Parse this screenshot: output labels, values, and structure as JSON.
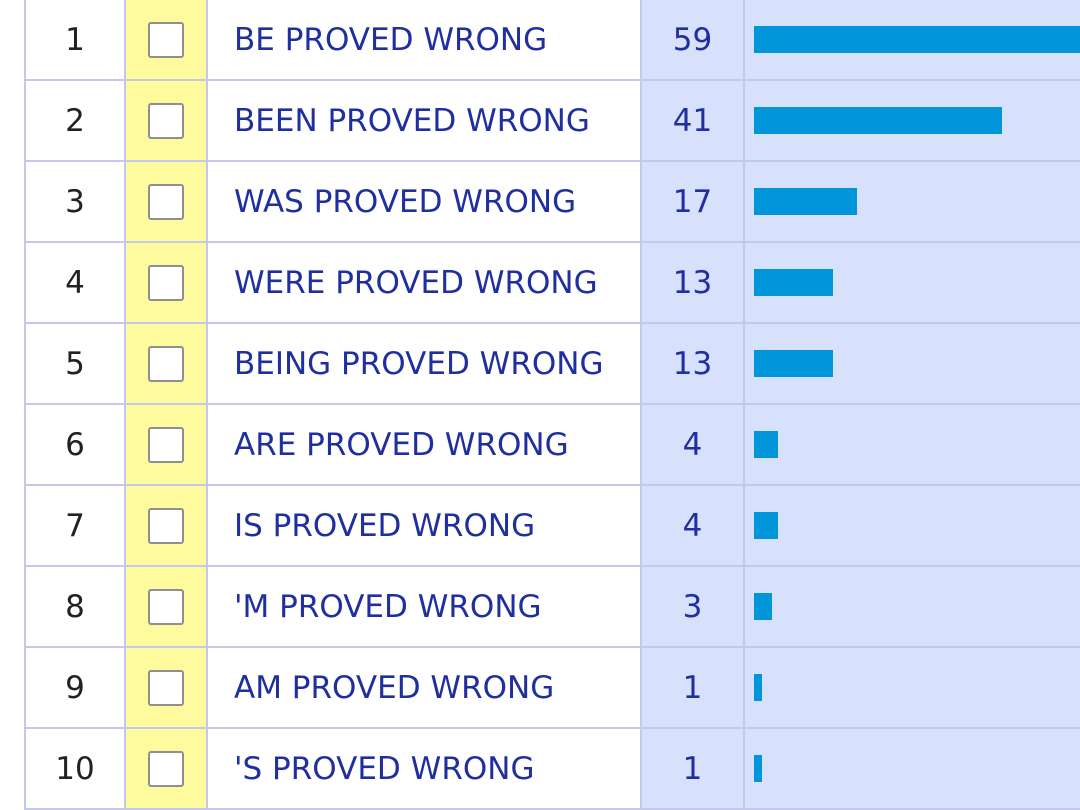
{
  "rows": [
    {
      "rank": "1",
      "phrase": "BE PROVED WRONG",
      "frequency": "59"
    },
    {
      "rank": "2",
      "phrase": "BEEN PROVED WRONG",
      "frequency": "41"
    },
    {
      "rank": "3",
      "phrase": "WAS PROVED WRONG",
      "frequency": "17"
    },
    {
      "rank": "4",
      "phrase": "WERE PROVED WRONG",
      "frequency": "13"
    },
    {
      "rank": "5",
      "phrase": "BEING PROVED WRONG",
      "frequency": "13"
    },
    {
      "rank": "6",
      "phrase": "ARE PROVED WRONG",
      "frequency": "4"
    },
    {
      "rank": "7",
      "phrase": "IS PROVED WRONG",
      "frequency": "4"
    },
    {
      "rank": "8",
      "phrase": "'M PROVED WRONG",
      "frequency": "3"
    },
    {
      "rank": "9",
      "phrase": "AM PROVED WRONG",
      "frequency": "1"
    },
    {
      "rank": "10",
      "phrase": "'S PROVED WRONG",
      "frequency": "1"
    }
  ],
  "bar_max_frequency": 59,
  "colors": {
    "bar": "#0096d9",
    "checkbox_column": "#fdfb9e",
    "frequency_column": "#d7e1fc",
    "link_text": "#1f2f9f",
    "grid_line": "#c5c8ec"
  }
}
